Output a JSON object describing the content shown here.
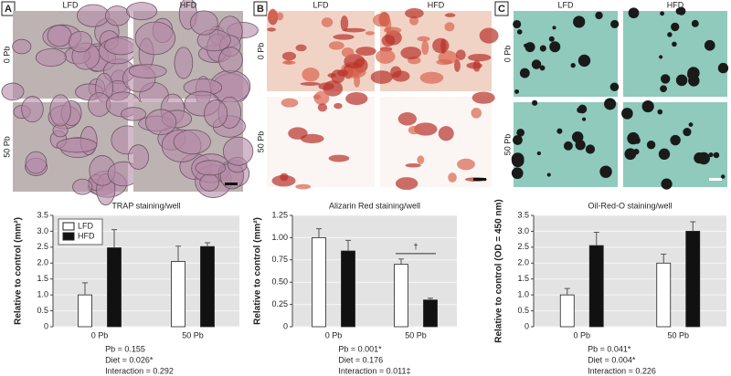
{
  "chart_data": [
    {
      "type": "bar",
      "panel": "A",
      "image_columns": [
        "LFD",
        "HFD"
      ],
      "image_rows": [
        "0 Pb",
        "50 Pb"
      ],
      "title": "TRAP staining/well",
      "ylabel": "Relative to control (mm²)",
      "categories": [
        "0 Pb",
        "50 Pb"
      ],
      "series": [
        {
          "name": "LFD",
          "color": "#ffffff",
          "values": [
            1.0,
            2.05
          ],
          "errors": [
            0.38,
            0.48
          ]
        },
        {
          "name": "HFD",
          "color": "#111111",
          "values": [
            2.48,
            2.52
          ],
          "errors": [
            0.57,
            0.12
          ]
        }
      ],
      "ylim": [
        0,
        3.5
      ],
      "yticks": [
        0,
        0.5,
        {
          "value": 1,
          "label": "1.0"
        },
        1.5,
        {
          "value": 2,
          "label": "2.0"
        },
        2.5,
        {
          "value": 3,
          "label": "3.0"
        },
        3.5
      ],
      "grid": true,
      "legend": "upper left",
      "stats": [
        "Pb = 0.155",
        "Diet = 0.026*",
        "Interaction = 0.292"
      ]
    },
    {
      "type": "bar",
      "panel": "B",
      "image_columns": [
        "LFD",
        "HFD"
      ],
      "image_rows": [
        "0 Pb",
        "50 Pb"
      ],
      "title": "Alizarin Red staining/well",
      "ylabel": "Relative to control (mm²)",
      "categories": [
        "0 Pb",
        "50 Pb"
      ],
      "series": [
        {
          "color": "#ffffff",
          "values": [
            1.0,
            0.7
          ],
          "errors": [
            0.1,
            0.06
          ]
        },
        {
          "color": "#111111",
          "values": [
            0.85,
            0.3
          ],
          "errors": [
            0.12,
            0.02
          ]
        }
      ],
      "ylim": [
        0,
        1.25
      ],
      "yticks": [
        0,
        {
          "value": 0.25,
          "label": "0.25"
        },
        {
          "value": 0.5,
          "label": "0.50"
        },
        {
          "value": 0.75,
          "label": "0.75"
        },
        {
          "value": 1,
          "label": "1.00"
        },
        {
          "value": 1.25,
          "label": "1.25"
        }
      ],
      "grid": true,
      "annotation": "†",
      "stats": [
        "Pb = 0.001*",
        "Diet = 0.176",
        "Interaction = 0.011‡"
      ]
    },
    {
      "type": "bar",
      "panel": "C",
      "image_columns": [
        "LFD",
        "HFD"
      ],
      "image_rows": [
        "0 Pb",
        "50 Pb"
      ],
      "title": "Oil-Red-O staining/well",
      "ylabel": "Relative to control (OD = 450 nm)",
      "categories": [
        "0 Pb",
        "50 Pb"
      ],
      "series": [
        {
          "color": "#ffffff",
          "values": [
            1.0,
            2.0
          ],
          "errors": [
            0.2,
            0.28
          ]
        },
        {
          "color": "#111111",
          "values": [
            2.55,
            3.0
          ],
          "errors": [
            0.42,
            0.3
          ]
        }
      ],
      "ylim": [
        0,
        3.5
      ],
      "yticks": [
        0,
        0.5,
        {
          "value": 1,
          "label": "1.0"
        },
        1.5,
        {
          "value": 2,
          "label": "2.0"
        },
        2.5,
        {
          "value": 3,
          "label": "3.0"
        },
        3.5
      ],
      "grid": true,
      "stats": [
        "Pb = 0.041*",
        "Diet = 0.004*",
        "Interaction = 0.226"
      ]
    }
  ]
}
